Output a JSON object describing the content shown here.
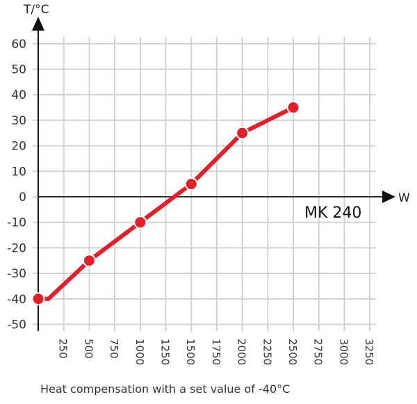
{
  "chart_data": {
    "type": "line",
    "title": "",
    "caption": "Heat compensation with a set value of -40°C",
    "xlabel": "W",
    "ylabel": "T/°C",
    "xlim": [
      0,
      3250
    ],
    "ylim": [
      -50,
      60
    ],
    "x_ticks": [
      250,
      500,
      750,
      1000,
      1250,
      1500,
      1750,
      2000,
      2250,
      2500,
      2750,
      3000,
      3250
    ],
    "y_ticks": [
      60,
      50,
      40,
      30,
      20,
      10,
      0,
      -10,
      -20,
      -30,
      -40,
      -50
    ],
    "grid": true,
    "series": [
      {
        "name": "MK 240",
        "color": "#e3202a",
        "x": [
          0,
          100,
          500,
          1000,
          1500,
          2000,
          2500
        ],
        "y": [
          -40,
          -40,
          -25,
          -10,
          5,
          25,
          35
        ],
        "markers_at": [
          0,
          500,
          1000,
          1500,
          2000,
          2500
        ]
      }
    ],
    "annotations": [
      {
        "text": "MK 240",
        "x": 2600,
        "y": -6
      }
    ]
  }
}
